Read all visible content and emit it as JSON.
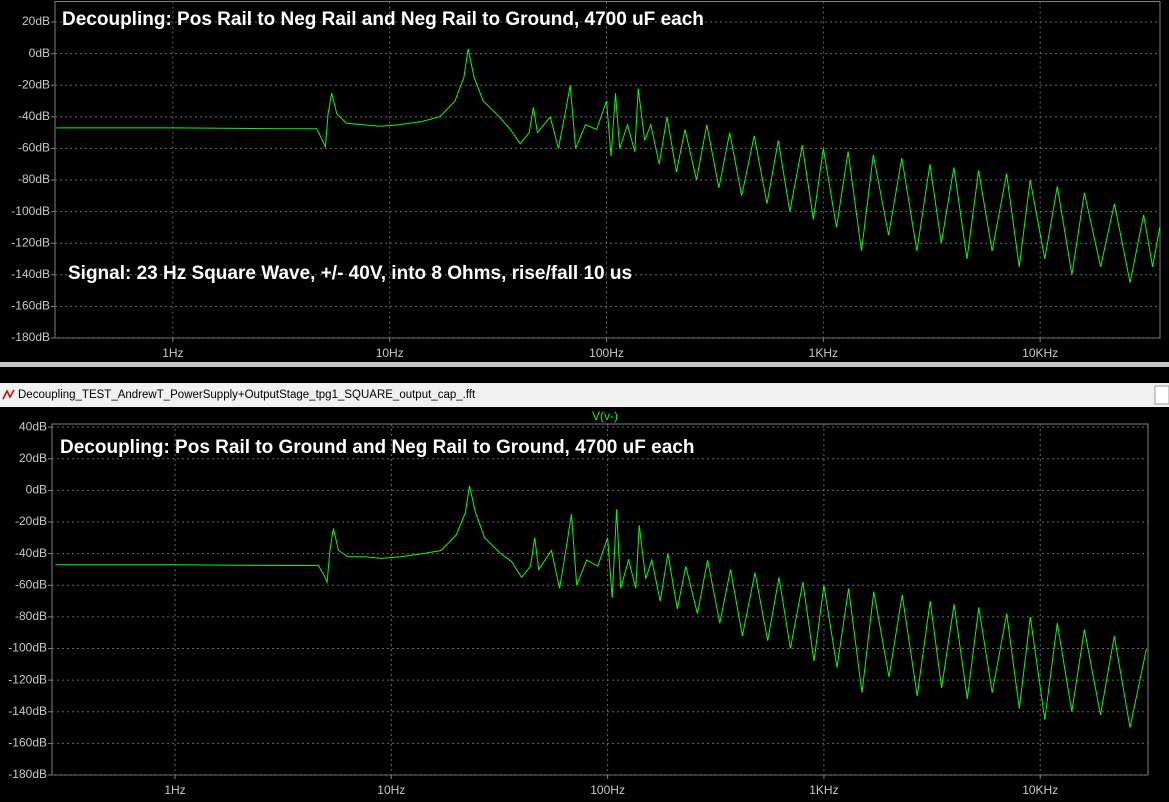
{
  "window_title": "Decoupling_TEST_AndrewT_PowerSupply+OutputStage_tpg1_SQUARE_output_cap_.fft",
  "chart_data": [
    {
      "type": "line",
      "title": "Decoupling: Pos Rail to Neg Rail and Neg Rail to Ground, 4700 uF each",
      "annotation": "Signal: 23 Hz Square Wave, +/- 40V, into 8 Ohms, rise/fall 10 us",
      "xscale": "log",
      "grid": true,
      "xlim": [
        0.286,
        35700
      ],
      "ylim": [
        -180,
        33
      ],
      "xticks": [
        {
          "value": 1,
          "label": "1Hz"
        },
        {
          "value": 10,
          "label": "10Hz"
        },
        {
          "value": 100,
          "label": "100Hz"
        },
        {
          "value": 1000,
          "label": "1KHz"
        },
        {
          "value": 10000,
          "label": "10KHz"
        }
      ],
      "yticks": [
        {
          "value": 20,
          "label": "20dB"
        },
        {
          "value": 0,
          "label": "0dB"
        },
        {
          "value": -20,
          "label": "-20dB"
        },
        {
          "value": -40,
          "label": "-40dB"
        },
        {
          "value": -60,
          "label": "-60dB"
        },
        {
          "value": -80,
          "label": "-80dB"
        },
        {
          "value": -100,
          "label": "-100dB"
        },
        {
          "value": -120,
          "label": "-120dB"
        },
        {
          "value": -140,
          "label": "-140dB"
        },
        {
          "value": -160,
          "label": "-160dB"
        },
        {
          "value": -180,
          "label": "-180dB"
        }
      ],
      "x": [
        0.29,
        1,
        3,
        4.6,
        4.9,
        5.05,
        5.2,
        5.4,
        5.7,
        6.3,
        7.5,
        9,
        11,
        14,
        17,
        20,
        22,
        23,
        24.5,
        27,
        32,
        36,
        40,
        44,
        46,
        48,
        55,
        60,
        65,
        68,
        72,
        80,
        90,
        100,
        105,
        110,
        115,
        125,
        135,
        140,
        150,
        160,
        175,
        190,
        210,
        230,
        260,
        290,
        330,
        370,
        420,
        480,
        550,
        620,
        700,
        800,
        900,
        1000,
        1150,
        1300,
        1500,
        1700,
        2000,
        2300,
        2700,
        3100,
        3500,
        4000,
        4600,
        5200,
        6000,
        7000,
        8000,
        9000,
        10500,
        12000,
        14000,
        16000,
        19000,
        22000,
        26000,
        30000,
        33000,
        35600
      ],
      "series": [
        {
          "color": "#00ff00",
          "values": [
            -47,
            -47,
            -47.5,
            -47.5,
            -55,
            -59,
            -38,
            -25,
            -38,
            -44,
            -45,
            -46,
            -45,
            -43,
            -40,
            -30,
            -15,
            3,
            -15,
            -30,
            -40,
            -48,
            -57,
            -50,
            -34,
            -50,
            -40,
            -60,
            -35,
            -20,
            -60,
            -45,
            -48,
            -30,
            -65,
            -25,
            -60,
            -45,
            -62,
            -22,
            -55,
            -45,
            -70,
            -40,
            -75,
            -48,
            -80,
            -45,
            -85,
            -50,
            -90,
            -52,
            -95,
            -55,
            -100,
            -58,
            -105,
            -60,
            -110,
            -62,
            -125,
            -64,
            -115,
            -66,
            -125,
            -70,
            -120,
            -72,
            -130,
            -74,
            -125,
            -76,
            -135,
            -80,
            -130,
            -84,
            -140,
            -88,
            -135,
            -95,
            -145,
            -102,
            -135,
            -110
          ]
        }
      ]
    },
    {
      "type": "line",
      "title": "Decoupling: Pos Rail to Ground and Neg Rail to Ground, 4700 uF each",
      "xscale": "log",
      "grid": true,
      "xlim": [
        0.27,
        31500
      ],
      "ylim": [
        -180,
        42
      ],
      "xticks": [
        {
          "value": 1,
          "label": "1Hz"
        },
        {
          "value": 10,
          "label": "10Hz"
        },
        {
          "value": 100,
          "label": "100Hz"
        },
        {
          "value": 1000,
          "label": "1KHz"
        },
        {
          "value": 10000,
          "label": "10KHz"
        }
      ],
      "yticks": [
        {
          "value": 40,
          "label": "40dB"
        },
        {
          "value": 20,
          "label": "20dB"
        },
        {
          "value": 0,
          "label": "0dB"
        },
        {
          "value": -20,
          "label": "-20dB"
        },
        {
          "value": -40,
          "label": "-40dB"
        },
        {
          "value": -60,
          "label": "-60dB"
        },
        {
          "value": -80,
          "label": "-80dB"
        },
        {
          "value": -100,
          "label": "-100dB"
        },
        {
          "value": -120,
          "label": "-120dB"
        },
        {
          "value": -140,
          "label": "-140dB"
        },
        {
          "value": -160,
          "label": "-160dB"
        },
        {
          "value": -180,
          "label": "-180dB"
        }
      ],
      "x": [
        0.28,
        1,
        3,
        4.6,
        4.9,
        5.05,
        5.2,
        5.4,
        5.7,
        6.3,
        7.5,
        9,
        11,
        14,
        17,
        20,
        22,
        23,
        24.5,
        27,
        32,
        36,
        40,
        44,
        46,
        48,
        55,
        60,
        65,
        68,
        72,
        80,
        90,
        100,
        105,
        110,
        115,
        125,
        135,
        140,
        150,
        160,
        175,
        190,
        210,
        230,
        260,
        290,
        330,
        370,
        420,
        480,
        550,
        620,
        700,
        800,
        900,
        1000,
        1150,
        1300,
        1500,
        1700,
        2000,
        2300,
        2700,
        3100,
        3500,
        4000,
        4600,
        5200,
        6000,
        7000,
        8000,
        9000,
        10500,
        12000,
        14000,
        16000,
        19000,
        22000,
        26000,
        31000
      ],
      "series": [
        {
          "name": "V(v-)",
          "color": "#00ff00",
          "values": [
            -47,
            -47,
            -47.5,
            -47.5,
            -54,
            -58,
            -38,
            -24,
            -38,
            -42,
            -42,
            -43,
            -42,
            -40,
            -38,
            -28,
            -14,
            3,
            -14,
            -30,
            -40,
            -45,
            -55,
            -48,
            -30,
            -50,
            -38,
            -62,
            -33,
            -15,
            -60,
            -44,
            -48,
            -30,
            -68,
            -12,
            -62,
            -44,
            -62,
            -22,
            -56,
            -44,
            -70,
            -40,
            -75,
            -48,
            -78,
            -44,
            -84,
            -50,
            -92,
            -52,
            -95,
            -55,
            -100,
            -58,
            -108,
            -60,
            -112,
            -62,
            -128,
            -64,
            -118,
            -66,
            -130,
            -70,
            -125,
            -72,
            -132,
            -74,
            -128,
            -78,
            -138,
            -80,
            -145,
            -84,
            -140,
            -88,
            -142,
            -92,
            -150,
            -100
          ]
        }
      ]
    }
  ]
}
